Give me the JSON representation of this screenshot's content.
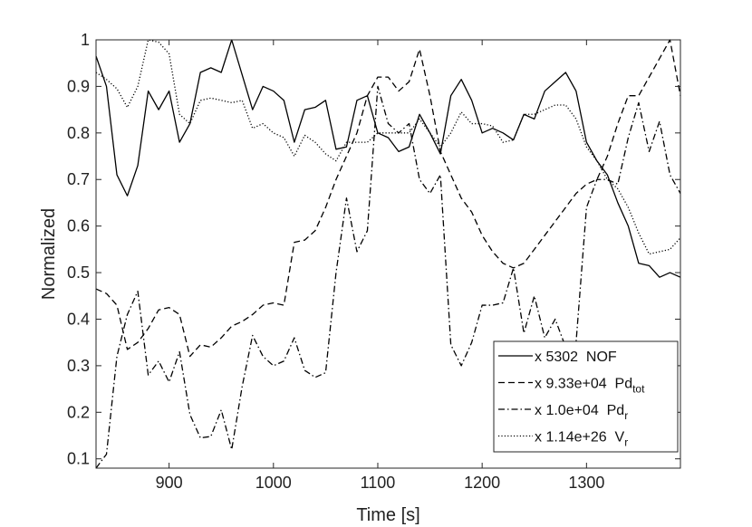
{
  "chart_data": {
    "type": "line",
    "title": "",
    "xlabel": "Time [s]",
    "ylabel": "Normalized",
    "xlim": [
      830,
      1390
    ],
    "ylim": [
      0.08,
      1.0
    ],
    "xticks": [
      900,
      1000,
      1100,
      1200,
      1300
    ],
    "yticks": [
      0.1,
      0.2,
      0.3,
      0.4,
      0.5,
      0.6,
      0.7,
      0.8,
      0.9,
      1
    ],
    "grid": false,
    "box": true,
    "legend_position": "bottom-right",
    "series": [
      {
        "name": "NOF",
        "legend_prefix": "x 5302",
        "legend_main": "NOF",
        "legend_sub": "",
        "style": "solid",
        "color": "#000000",
        "x": [
          830,
          840,
          850,
          860,
          870,
          880,
          890,
          900,
          910,
          920,
          930,
          940,
          950,
          960,
          970,
          980,
          990,
          1000,
          1010,
          1020,
          1030,
          1040,
          1050,
          1060,
          1070,
          1080,
          1090,
          1100,
          1110,
          1120,
          1130,
          1140,
          1150,
          1160,
          1170,
          1180,
          1190,
          1200,
          1210,
          1220,
          1230,
          1240,
          1250,
          1260,
          1270,
          1280,
          1290,
          1300,
          1310,
          1320,
          1330,
          1340,
          1350,
          1360,
          1370,
          1380,
          1390
        ],
        "y": [
          0.965,
          0.9,
          0.71,
          0.665,
          0.73,
          0.89,
          0.85,
          0.89,
          0.78,
          0.82,
          0.93,
          0.94,
          0.93,
          1.0,
          0.925,
          0.85,
          0.9,
          0.89,
          0.87,
          0.78,
          0.85,
          0.855,
          0.87,
          0.765,
          0.77,
          0.87,
          0.88,
          0.8,
          0.79,
          0.76,
          0.77,
          0.84,
          0.8,
          0.755,
          0.88,
          0.915,
          0.87,
          0.8,
          0.81,
          0.8,
          0.785,
          0.84,
          0.83,
          0.89,
          0.91,
          0.93,
          0.89,
          0.78,
          0.74,
          0.71,
          0.65,
          0.6,
          0.52,
          0.515,
          0.49,
          0.5,
          0.49
        ]
      },
      {
        "name": "Pd_tot",
        "legend_prefix": "x 9.33e+04",
        "legend_main": "Pd",
        "legend_sub": "tot",
        "style": "dashed",
        "color": "#000000",
        "x": [
          830,
          840,
          850,
          860,
          870,
          880,
          890,
          900,
          910,
          920,
          930,
          940,
          950,
          960,
          970,
          980,
          990,
          1000,
          1010,
          1020,
          1030,
          1040,
          1050,
          1060,
          1070,
          1080,
          1090,
          1100,
          1110,
          1120,
          1130,
          1140,
          1150,
          1160,
          1170,
          1180,
          1190,
          1200,
          1210,
          1220,
          1230,
          1240,
          1250,
          1260,
          1270,
          1280,
          1290,
          1300,
          1310,
          1320,
          1330,
          1340,
          1350,
          1360,
          1370,
          1380,
          1390
        ],
        "y": [
          0.465,
          0.455,
          0.43,
          0.335,
          0.35,
          0.38,
          0.42,
          0.425,
          0.41,
          0.32,
          0.345,
          0.34,
          0.36,
          0.385,
          0.395,
          0.41,
          0.43,
          0.435,
          0.43,
          0.565,
          0.57,
          0.59,
          0.64,
          0.7,
          0.75,
          0.8,
          0.88,
          0.92,
          0.92,
          0.89,
          0.91,
          0.98,
          0.88,
          0.76,
          0.71,
          0.66,
          0.63,
          0.58,
          0.545,
          0.52,
          0.51,
          0.52,
          0.55,
          0.58,
          0.61,
          0.64,
          0.67,
          0.69,
          0.7,
          0.75,
          0.82,
          0.88,
          0.88,
          0.92,
          0.96,
          1.0,
          0.88
        ]
      },
      {
        "name": "Pd_r",
        "legend_prefix": "x 1.0e+04",
        "legend_main": "Pd",
        "legend_sub": "r",
        "style": "dashdot",
        "color": "#000000",
        "x": [
          830,
          840,
          850,
          860,
          870,
          880,
          890,
          900,
          910,
          920,
          930,
          940,
          950,
          960,
          970,
          980,
          990,
          1000,
          1010,
          1020,
          1030,
          1040,
          1050,
          1060,
          1070,
          1080,
          1090,
          1100,
          1110,
          1120,
          1130,
          1140,
          1150,
          1160,
          1170,
          1180,
          1190,
          1200,
          1210,
          1220,
          1230,
          1240,
          1250,
          1260,
          1270,
          1280,
          1290,
          1300,
          1310,
          1320,
          1330,
          1340,
          1350,
          1360,
          1370,
          1380,
          1390
        ],
        "y": [
          0.08,
          0.11,
          0.32,
          0.41,
          0.46,
          0.28,
          0.31,
          0.265,
          0.33,
          0.195,
          0.145,
          0.148,
          0.205,
          0.12,
          0.255,
          0.365,
          0.32,
          0.3,
          0.31,
          0.36,
          0.29,
          0.275,
          0.285,
          0.5,
          0.66,
          0.545,
          0.59,
          0.9,
          0.82,
          0.8,
          0.82,
          0.7,
          0.67,
          0.71,
          0.345,
          0.3,
          0.35,
          0.43,
          0.43,
          0.435,
          0.51,
          0.37,
          0.45,
          0.36,
          0.4,
          0.34,
          0.35,
          0.64,
          0.7,
          0.7,
          0.69,
          0.79,
          0.865,
          0.76,
          0.825,
          0.71,
          0.67
        ]
      },
      {
        "name": "V_r",
        "legend_prefix": "x 1.14e+26",
        "legend_main": "V",
        "legend_sub": "r",
        "style": "dotted",
        "color": "#000000",
        "x": [
          830,
          840,
          850,
          860,
          870,
          880,
          890,
          900,
          910,
          920,
          930,
          940,
          950,
          960,
          970,
          980,
          990,
          1000,
          1010,
          1020,
          1030,
          1040,
          1050,
          1060,
          1070,
          1080,
          1090,
          1100,
          1110,
          1120,
          1130,
          1140,
          1150,
          1160,
          1170,
          1180,
          1190,
          1200,
          1210,
          1220,
          1230,
          1240,
          1250,
          1260,
          1270,
          1280,
          1290,
          1300,
          1310,
          1320,
          1330,
          1340,
          1350,
          1360,
          1370,
          1380,
          1390
        ],
        "y": [
          0.93,
          0.915,
          0.895,
          0.855,
          0.9,
          1.0,
          0.995,
          0.97,
          0.84,
          0.82,
          0.87,
          0.875,
          0.87,
          0.865,
          0.87,
          0.81,
          0.82,
          0.8,
          0.79,
          0.75,
          0.795,
          0.78,
          0.755,
          0.74,
          0.78,
          0.78,
          0.78,
          0.8,
          0.8,
          0.8,
          0.8,
          0.83,
          0.8,
          0.77,
          0.8,
          0.845,
          0.82,
          0.82,
          0.815,
          0.78,
          0.785,
          0.84,
          0.84,
          0.85,
          0.86,
          0.86,
          0.83,
          0.77,
          0.74,
          0.7,
          0.68,
          0.64,
          0.585,
          0.54,
          0.545,
          0.55,
          0.575
        ]
      }
    ]
  }
}
